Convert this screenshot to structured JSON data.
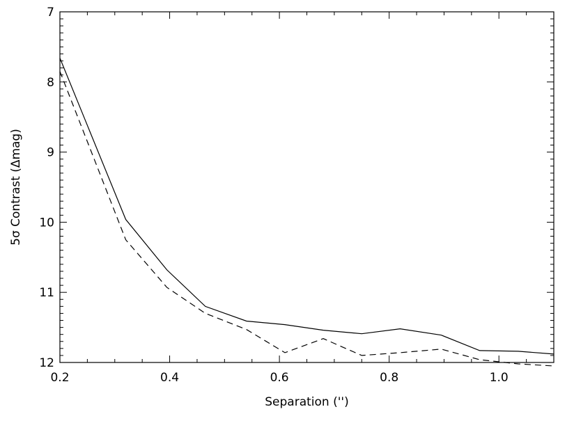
{
  "chart_data": {
    "type": "line",
    "xlabel": "Separation ('')",
    "ylabel": "5σ Contrast (Δmag)",
    "xlim": [
      0.2,
      1.1
    ],
    "ylim": [
      12.0,
      7.0
    ],
    "y_inverted": true,
    "grid": false,
    "legend": "none",
    "x_major_ticks": [
      0.2,
      0.4,
      0.6,
      0.8,
      1.0
    ],
    "x_tick_labels": [
      "0.2",
      "0.4",
      "0.6",
      "0.8",
      "1.0"
    ],
    "y_major_ticks": [
      7,
      8,
      9,
      10,
      11,
      12
    ],
    "y_tick_labels": [
      "7",
      "8",
      "9",
      "10",
      "11",
      "12"
    ],
    "series": [
      {
        "style": "solid",
        "x": [
          0.2,
          0.32,
          0.395,
          0.465,
          0.54,
          0.61,
          0.68,
          0.75,
          0.82,
          0.895,
          0.965,
          1.035,
          1.1
        ],
        "y": [
          7.66,
          9.96,
          10.68,
          11.2,
          11.41,
          11.46,
          11.54,
          11.59,
          11.52,
          11.61,
          11.83,
          11.84,
          11.88
        ]
      },
      {
        "style": "dashed",
        "x": [
          0.2,
          0.32,
          0.395,
          0.465,
          0.54,
          0.61,
          0.68,
          0.75,
          0.82,
          0.895,
          0.965,
          1.035,
          1.1
        ],
        "y": [
          7.85,
          10.25,
          10.93,
          11.3,
          11.53,
          11.86,
          11.66,
          11.9,
          11.86,
          11.81,
          11.96,
          12.02,
          12.05
        ]
      }
    ]
  }
}
